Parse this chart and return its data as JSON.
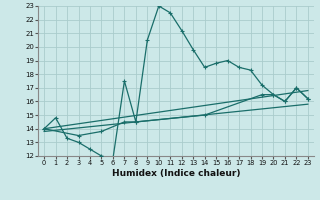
{
  "background_color": "#cce8e8",
  "grid_color": "#aacccc",
  "line_color": "#1a6e6a",
  "xlabel": "Humidex (Indice chaleur)",
  "xlim": [
    -0.5,
    23.5
  ],
  "ylim": [
    12,
    23
  ],
  "xticks": [
    0,
    1,
    2,
    3,
    4,
    5,
    6,
    7,
    8,
    9,
    10,
    11,
    12,
    13,
    14,
    15,
    16,
    17,
    18,
    19,
    20,
    21,
    22,
    23
  ],
  "yticks": [
    12,
    13,
    14,
    15,
    16,
    17,
    18,
    19,
    20,
    21,
    22,
    23
  ],
  "line1_x": [
    0,
    1,
    2,
    3,
    4,
    5,
    6,
    7,
    8,
    9,
    10,
    11,
    12,
    13,
    14,
    15,
    16,
    17,
    18,
    19,
    20,
    21,
    22,
    23
  ],
  "line1_y": [
    14.0,
    14.8,
    13.3,
    13.0,
    12.5,
    12.0,
    11.8,
    17.5,
    14.5,
    20.5,
    23.0,
    22.5,
    21.2,
    19.8,
    18.5,
    18.8,
    19.0,
    18.5,
    18.3,
    17.2,
    16.5,
    16.0,
    17.0,
    16.2
  ],
  "line2_x": [
    0,
    3,
    5,
    7,
    8,
    14,
    19,
    20,
    21,
    22,
    23
  ],
  "line2_y": [
    14.0,
    13.5,
    13.8,
    14.5,
    14.5,
    15.0,
    16.5,
    16.5,
    16.0,
    17.0,
    16.2
  ],
  "line3_x": [
    0,
    23
  ],
  "line3_y": [
    14.0,
    16.8
  ],
  "line4_x": [
    0,
    23
  ],
  "line4_y": [
    13.8,
    15.8
  ]
}
